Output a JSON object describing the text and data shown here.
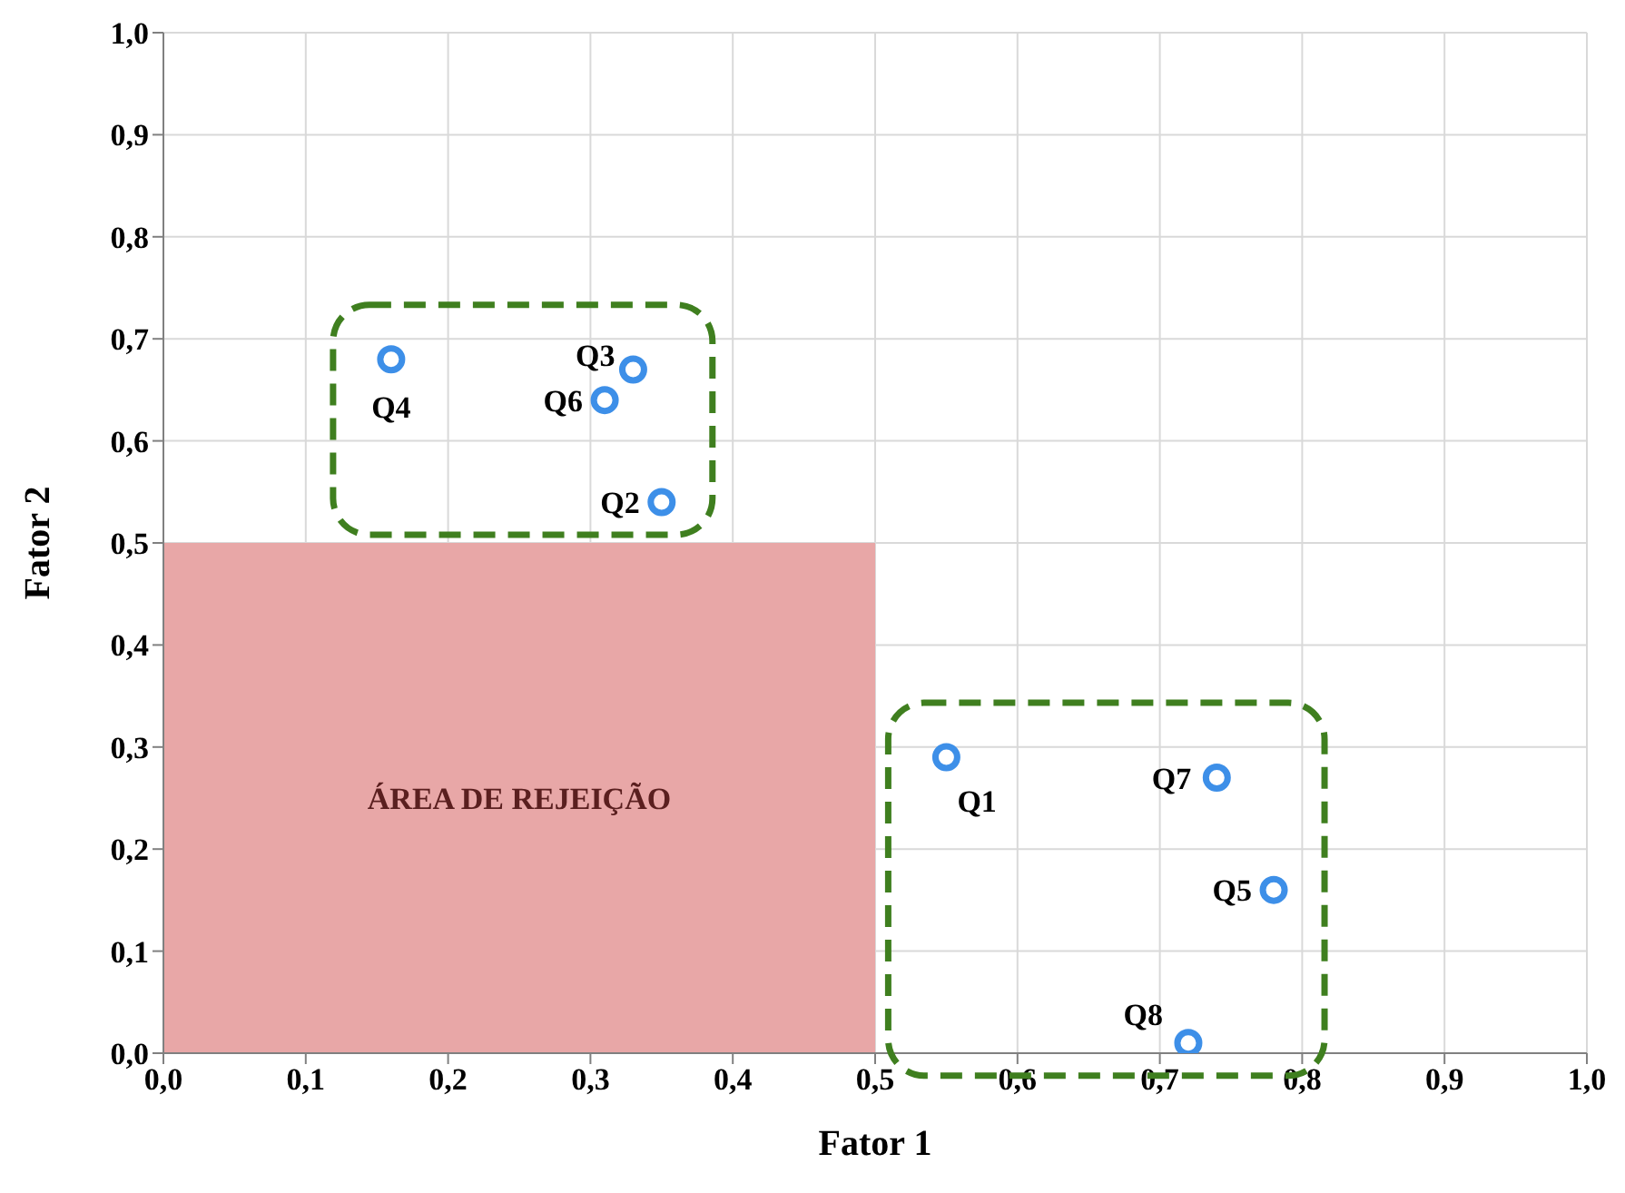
{
  "chart_data": {
    "type": "scatter",
    "xlabel": "Fator 1",
    "ylabel": "Fator 2",
    "x": [
      0.55,
      0.35,
      0.33,
      0.16,
      0.78,
      0.31,
      0.74,
      0.72
    ],
    "series": [
      {
        "type": "area",
        "color": "#e8a7a7",
        "x": [
          0,
          0.5
        ],
        "values": [
          0.5,
          0.5
        ],
        "marker": "none"
      },
      {
        "color": "#3d8fe8",
        "values": [
          0.29,
          0.54,
          0.67,
          0.68,
          0.16,
          0.64,
          0.27,
          0.01
        ]
      }
    ],
    "xlim": [
      0,
      1
    ],
    "ylim": [
      0,
      1
    ],
    "xticks": [
      {
        "value": 0,
        "label": "0,0"
      },
      {
        "value": 0.1,
        "label": "0,1"
      },
      {
        "value": 0.2,
        "label": "0,2"
      },
      {
        "value": 0.3,
        "label": "0,3"
      },
      {
        "value": 0.4,
        "label": "0,4"
      },
      {
        "value": 0.5,
        "label": "0,5"
      },
      {
        "value": 0.6,
        "label": "0,6"
      },
      {
        "value": 0.7,
        "label": "0,7"
      },
      {
        "value": 0.8,
        "label": "0,8"
      },
      {
        "value": 0.9,
        "label": "0,9"
      },
      {
        "value": 1,
        "label": "1,0"
      }
    ],
    "yticks": [
      {
        "value": 0,
        "label": "0,0"
      },
      {
        "value": 0.1,
        "label": "0,1"
      },
      {
        "value": 0.2,
        "label": "0,2"
      },
      {
        "value": 0.3,
        "label": "0,3"
      },
      {
        "value": 0.4,
        "label": "0,4"
      },
      {
        "value": 0.5,
        "label": "0,5"
      },
      {
        "value": 0.6,
        "label": "0,6"
      },
      {
        "value": 0.7,
        "label": "0,7"
      },
      {
        "value": 0.8,
        "label": "0,8"
      },
      {
        "value": 0.9,
        "label": "0,9"
      },
      {
        "value": 1,
        "label": "1,0"
      }
    ],
    "annotations": [
      "ÁREA DE REJEIÇÃO",
      {
        "text": "Q1",
        "x": 0.55,
        "y": 0.29
      },
      {
        "text": "Q2",
        "x": 0.35,
        "y": 0.54
      },
      {
        "text": "Q3",
        "x": 0.33,
        "y": 0.67
      },
      {
        "text": "Q4",
        "x": 0.16,
        "y": 0.68
      },
      {
        "text": "Q5",
        "x": 0.78,
        "y": 0.16
      },
      {
        "text": "Q6",
        "x": 0.31,
        "y": 0.64
      },
      {
        "text": "Q7",
        "x": 0.74,
        "y": 0.27
      },
      {
        "text": "Q8",
        "x": 0.72,
        "y": 0.01
      }
    ],
    "grid": true,
    "marker": "circle"
  }
}
